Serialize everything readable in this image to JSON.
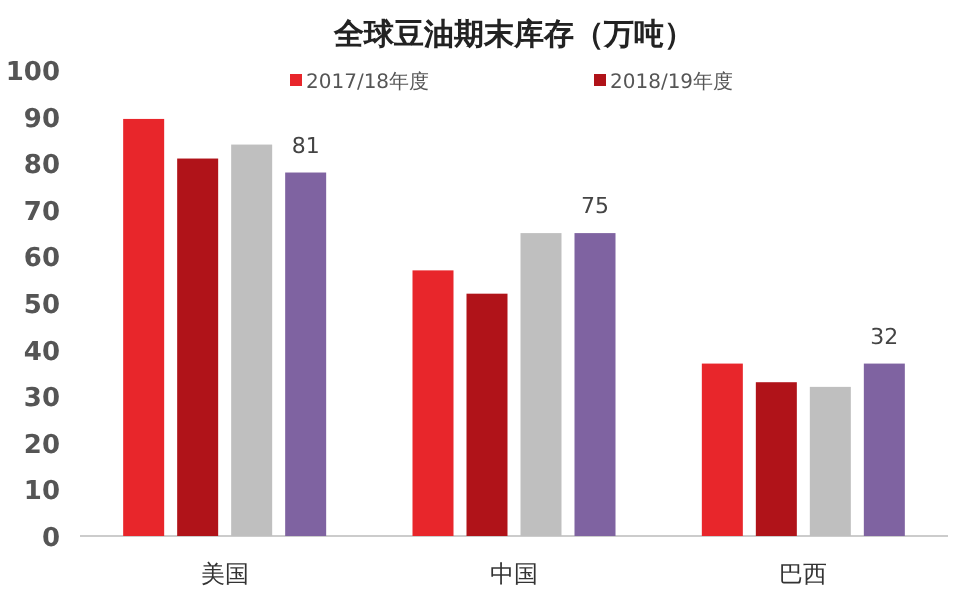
{
  "chart_data": {
    "type": "bar",
    "title": "全球豆油期末库存（万吨）",
    "categories": [
      "美国",
      "中国",
      "巴西"
    ],
    "series": [
      {
        "name": "2017/18年度",
        "color": "#e8262b",
        "values": [
          89.5,
          57,
          37
        ]
      },
      {
        "name": "2018/19年度",
        "color": "#b01319",
        "values": [
          81,
          52,
          33
        ]
      },
      {
        "color": "#bfbfbf",
        "values": [
          84,
          65,
          32
        ]
      },
      {
        "color": "#7f63a1",
        "values": [
          78,
          65,
          37
        ]
      }
    ],
    "ylim": [
      0,
      100
    ],
    "yticks": [
      0,
      10,
      20,
      30,
      40,
      50,
      60,
      70,
      80,
      90,
      100
    ],
    "grid": false,
    "legend": "top",
    "annotations": [
      "81",
      "75",
      "32"
    ]
  }
}
